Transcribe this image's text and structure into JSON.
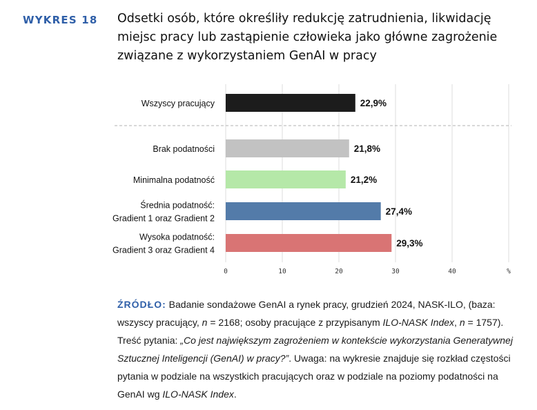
{
  "figure": {
    "label": "WYKRES 18",
    "title": "Odsetki osób, które określiły redukcję zatrudnienia, likwidację miejsc pracy lub zastąpienie człowieka jako główne zagrożenie związane z wy­korzystaniem GenAI w pracy"
  },
  "chart_data": {
    "type": "bar",
    "orientation": "horizontal",
    "categories": [
      "Wszyscy pracujący",
      "Brak podatności",
      "Minimalna podatność",
      "Średnia podatność:|Gradient 1 oraz Gradient 2",
      "Wysoka podatność:|Gradient 3 oraz Gradient 4"
    ],
    "values": [
      22.9,
      21.8,
      21.2,
      27.4,
      29.3
    ],
    "value_labels": [
      "22,9%",
      "21,8%",
      "21,2%",
      "27,4%",
      "29,3%"
    ],
    "colors": [
      "#1c1c1c",
      "#c2c2c2",
      "#b5e8a8",
      "#537ba9",
      "#d97474"
    ],
    "xlim": [
      0,
      50
    ],
    "x_ticks": [
      0,
      10,
      20,
      30,
      40
    ],
    "x_tick_labels": [
      "0",
      "10",
      "20",
      "30",
      "40"
    ],
    "x_unit_label": "%",
    "grid": true,
    "separator_after_first": true
  },
  "source": {
    "label": "ŹRÓDŁO:",
    "line1_a": " Badanie sondażowe GenAI a rynek pracy, grudzień 2024, NASK-ILO, (baza: wszyscy pracujący, ",
    "n1_var": "n",
    "n1_rest": " = 2168; osoby pracujące z przypisanym ",
    "index1": "ILO-NASK Index",
    "comma": ", ",
    "n2_var": "n",
    "n2_rest": " = 1757).",
    "q_prefix": " Treść pytania: ",
    "question": "„Co jest największym zagrożeniem w kontekście wykorzystania Genera­tywnej Sztucznej Inteligencji (GenAI) w pracy?”",
    "note": ". Uwaga: na wykresie znajduje się rozkład częstości pytania w podziale na wszystkich pracujących oraz w podziale na poziomy po­datności na GenAI wg ",
    "index2": "ILO-NASK Index",
    "end": "."
  }
}
